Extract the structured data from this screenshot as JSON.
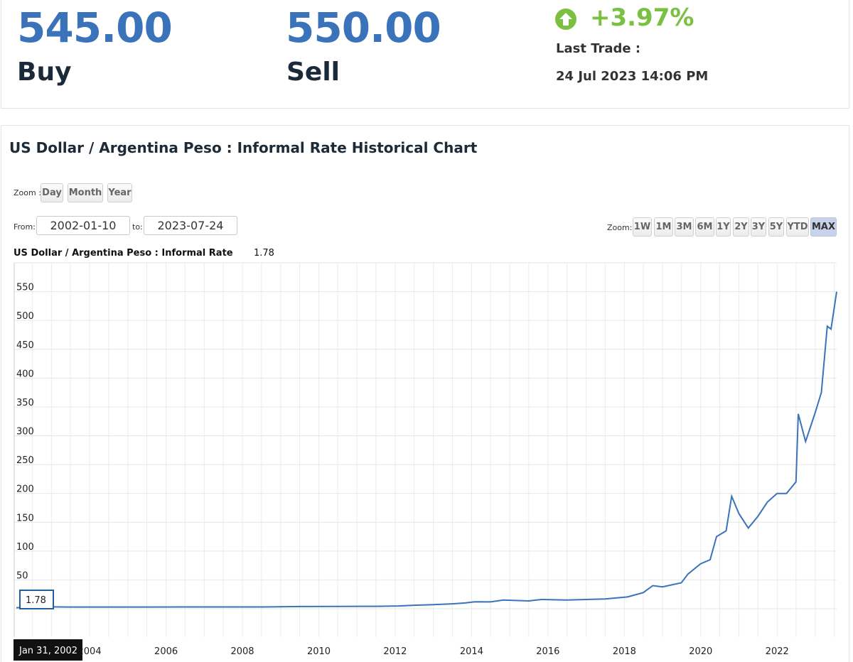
{
  "quote": {
    "buy_value": "545.00",
    "buy_label": "Buy",
    "sell_value": "550.00",
    "sell_label": "Sell",
    "change": "+3.97%",
    "last_trade_label": "Last Trade :",
    "last_trade_time": "24 Jul 2023 14:06 PM",
    "up_icon": "arrow-up-circle-icon",
    "up_color": "#7bc043",
    "price_color": "#3a73b9"
  },
  "chart_header": {
    "title": "US Dollar / Argentina Peso : Informal Rate Historical Chart",
    "zoom_label": "Zoom :",
    "zoom_buttons": [
      "Day",
      "Month",
      "Year"
    ],
    "from_label": "From:",
    "from_value": "2002-01-10",
    "to_label": "to:",
    "to_value": "2023-07-24",
    "range_zoom_label": "Zoom:",
    "range_buttons": [
      "1W",
      "1M",
      "3M",
      "6M",
      "1Y",
      "2Y",
      "3Y",
      "5Y",
      "YTD",
      "MAX"
    ],
    "range_active": "MAX"
  },
  "chart_data": {
    "type": "line",
    "title": "US Dollar / Argentina Peso : Informal Rate Historical Chart",
    "series": [
      {
        "name": "US Dollar / Argentina Peso : Informal Rate",
        "color": "#3a73b9",
        "points": [
          [
            "2002-01-31",
            1.78
          ],
          [
            "2002-06-30",
            3.6
          ],
          [
            "2003-06-30",
            2.9
          ],
          [
            "2004-06-30",
            2.95
          ],
          [
            "2005-06-30",
            2.9
          ],
          [
            "2006-06-30",
            3.1
          ],
          [
            "2007-06-30",
            3.1
          ],
          [
            "2008-06-30",
            3.05
          ],
          [
            "2009-06-30",
            3.85
          ],
          [
            "2010-06-30",
            3.95
          ],
          [
            "2011-06-30",
            4.2
          ],
          [
            "2012-01-31",
            4.8
          ],
          [
            "2012-06-30",
            6.0
          ],
          [
            "2012-12-31",
            7.0
          ],
          [
            "2013-06-30",
            8.5
          ],
          [
            "2013-10-31",
            10.0
          ],
          [
            "2014-01-31",
            12.0
          ],
          [
            "2014-06-30",
            11.8
          ],
          [
            "2014-10-31",
            15.0
          ],
          [
            "2015-06-30",
            13.5
          ],
          [
            "2015-10-31",
            16.0
          ],
          [
            "2016-06-30",
            15.2
          ],
          [
            "2017-06-30",
            17.0
          ],
          [
            "2018-01-31",
            20.5
          ],
          [
            "2018-06-30",
            28.0
          ],
          [
            "2018-09-30",
            40.0
          ],
          [
            "2018-12-31",
            38.0
          ],
          [
            "2019-06-30",
            45.0
          ],
          [
            "2019-08-31",
            60.0
          ],
          [
            "2019-12-31",
            78.0
          ],
          [
            "2020-03-31",
            85.0
          ],
          [
            "2020-05-31",
            125.0
          ],
          [
            "2020-08-31",
            135.0
          ],
          [
            "2020-10-23",
            195.0
          ],
          [
            "2020-12-31",
            165.0
          ],
          [
            "2021-03-31",
            140.0
          ],
          [
            "2021-06-30",
            160.0
          ],
          [
            "2021-09-30",
            185.0
          ],
          [
            "2021-12-31",
            200.0
          ],
          [
            "2022-03-31",
            200.0
          ],
          [
            "2022-06-30",
            220.0
          ],
          [
            "2022-07-22",
            338.0
          ],
          [
            "2022-09-30",
            290.0
          ],
          [
            "2022-12-31",
            340.0
          ],
          [
            "2023-02-28",
            375.0
          ],
          [
            "2023-04-25",
            490.0
          ],
          [
            "2023-05-31",
            485.0
          ],
          [
            "2023-07-24",
            550.0
          ]
        ]
      }
    ],
    "x_tick_labels": [
      "2004",
      "2006",
      "2008",
      "2010",
      "2012",
      "2014",
      "2016",
      "2018",
      "2020",
      "2022"
    ],
    "y_tick_labels": [
      "50",
      "100",
      "150",
      "200",
      "250",
      "300",
      "350",
      "400",
      "450",
      "500",
      "550"
    ],
    "ylim": [
      0,
      600
    ],
    "xlim": [
      "2002-01-10",
      "2023-07-24"
    ],
    "grid": true,
    "cursor_date": "Jan 31, 2002",
    "cursor_value": "1.78",
    "legend_series_label": "US Dollar / Argentina Peso : Informal Rate",
    "legend_series_value": "1.78"
  }
}
